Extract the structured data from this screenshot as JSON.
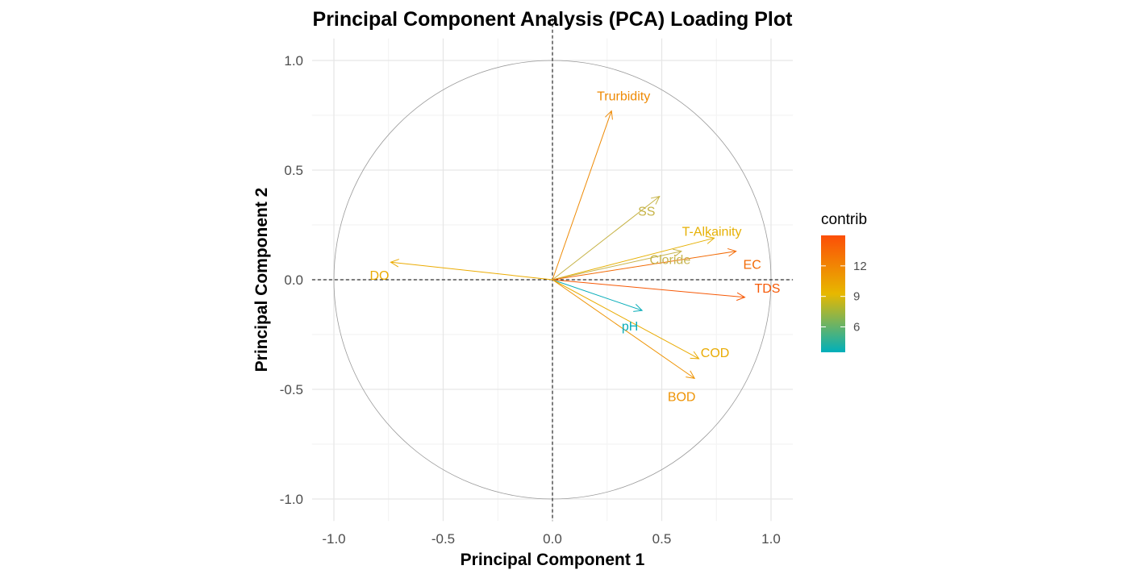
{
  "chart_data": {
    "type": "scatter",
    "subtype": "pca-loading-plot",
    "title": "Principal Component Analysis (PCA) Loading Plot",
    "xlabel": "Principal Component 1",
    "ylabel": "Principal Component 2",
    "xlim": [
      -1.1,
      1.1
    ],
    "ylim": [
      -1.1,
      1.1
    ],
    "xticks": [
      -1.0,
      -0.5,
      0.0,
      0.5,
      1.0
    ],
    "yticks": [
      -1.0,
      -0.5,
      0.0,
      0.5,
      1.0
    ],
    "xtick_labels": [
      "-1.0",
      "-0.5",
      "0.0",
      "0.5",
      "1.0"
    ],
    "ytick_labels": [
      "-1.0",
      "-0.5",
      "0.0",
      "0.5",
      "1.0"
    ],
    "grid": true,
    "unit_circle": true,
    "reference_lines": "dashed at x=0 and y=0",
    "legend": {
      "title": "contrib",
      "placement": "right",
      "ticks": [
        6,
        9,
        12
      ],
      "tick_labels": [
        "6",
        "9",
        "12"
      ],
      "range": [
        3.5,
        15.0
      ],
      "gradient_colors": [
        "#00AFBB",
        "#E7B800",
        "#FC4E07"
      ]
    },
    "variables": [
      {
        "name": "Trurbidity",
        "pc1": 0.27,
        "pc2": 0.77,
        "contrib": 10.2,
        "color": "#EE8A05"
      },
      {
        "name": "SS",
        "pc1": 0.49,
        "pc2": 0.38,
        "contrib": 7.0,
        "color": "#C6B346"
      },
      {
        "name": "T-Alkainity",
        "pc1": 0.74,
        "pc2": 0.19,
        "contrib": 9.0,
        "color": "#E6B004"
      },
      {
        "name": "Cloride",
        "pc1": 0.59,
        "pc2": 0.13,
        "contrib": 6.9,
        "color": "#C7B54E"
      },
      {
        "name": "EC",
        "pc1": 0.84,
        "pc2": 0.13,
        "contrib": 13.0,
        "color": "#F26A05"
      },
      {
        "name": "TDS",
        "pc1": 0.88,
        "pc2": -0.08,
        "contrib": 14.2,
        "color": "#F65906"
      },
      {
        "name": "DO",
        "pc1": -0.74,
        "pc2": 0.08,
        "contrib": 9.5,
        "color": "#EBAB02"
      },
      {
        "name": "pH",
        "pc1": 0.41,
        "pc2": -0.14,
        "contrib": 3.6,
        "color": "#08ADB9"
      },
      {
        "name": "COD",
        "pc1": 0.67,
        "pc2": -0.36,
        "contrib": 9.2,
        "color": "#E9AB03"
      },
      {
        "name": "BOD",
        "pc1": 0.65,
        "pc2": -0.45,
        "contrib": 10.3,
        "color": "#EE9304"
      }
    ]
  }
}
